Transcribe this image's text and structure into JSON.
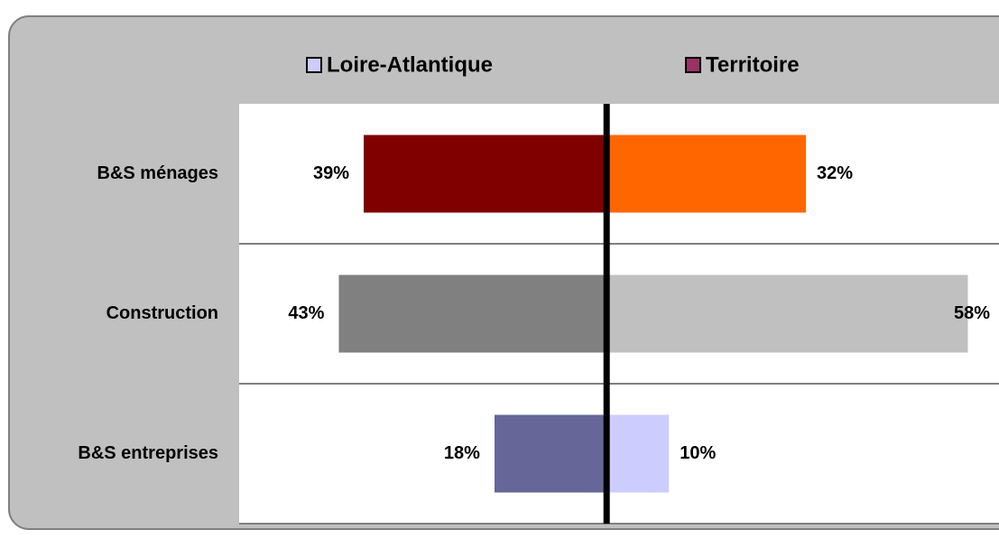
{
  "chart_data": {
    "type": "butterfly",
    "categories": [
      "B&S ménages",
      "Construction",
      "B&S entreprises"
    ],
    "series": [
      {
        "name": "Loire-Atlantique",
        "color": "#ccccff",
        "values": [
          39,
          43,
          18
        ],
        "value_labels": [
          "39%",
          "43%",
          "18%"
        ],
        "colors": [
          "#800000",
          "#808080",
          "#666699"
        ]
      },
      {
        "name": "Territoire",
        "color": "#993366",
        "values": [
          32,
          58,
          10
        ],
        "value_labels": [
          "32%",
          "58%",
          "10%"
        ],
        "colors": [
          "#ff6600",
          "#c0c0c0",
          "#ccccff"
        ]
      }
    ],
    "xlim": [
      -59,
      63
    ]
  }
}
